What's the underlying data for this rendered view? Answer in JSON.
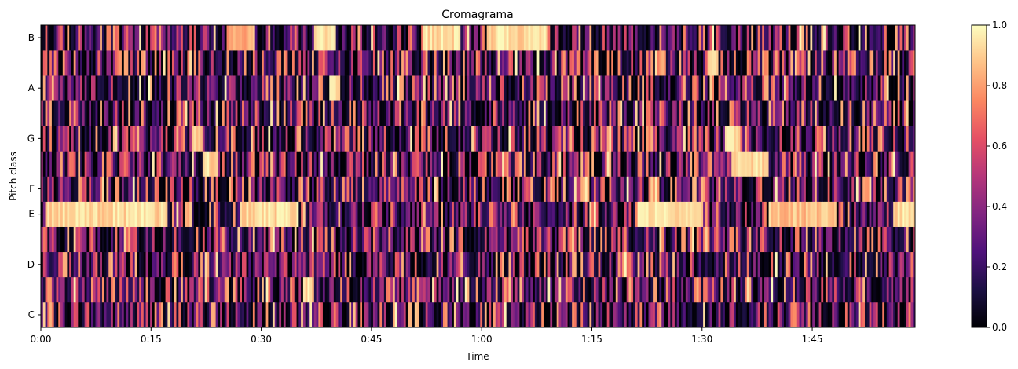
{
  "chart_data": {
    "type": "heatmap",
    "title": "Cromagrama",
    "xlabel": "Time",
    "ylabel": "Pitch class",
    "x_range_seconds": [
      0,
      119
    ],
    "x_ticks": [
      {
        "value": 0,
        "label": "0:00"
      },
      {
        "value": 15,
        "label": "0:15"
      },
      {
        "value": 30,
        "label": "0:30"
      },
      {
        "value": 45,
        "label": "0:45"
      },
      {
        "value": 60,
        "label": "1:00"
      },
      {
        "value": 75,
        "label": "1:15"
      },
      {
        "value": 90,
        "label": "1:30"
      },
      {
        "value": 105,
        "label": "1:45"
      }
    ],
    "pitch_classes": [
      "C",
      "C#",
      "D",
      "D#",
      "E",
      "F",
      "F#",
      "G",
      "G#",
      "A",
      "A#",
      "B"
    ],
    "y_tick_labels": [
      "C",
      "D",
      "E",
      "F",
      "G",
      "A",
      "B"
    ],
    "colormap": "magma",
    "colorbar": {
      "range": [
        0,
        1
      ],
      "ticks": [
        "0.0",
        "0.2",
        "0.4",
        "0.6",
        "0.8",
        "1.0"
      ]
    },
    "value_range": [
      0,
      1
    ],
    "dominant_regions": [
      {
        "pitch": "E",
        "start": 0.5,
        "end": 17,
        "value": 1.0
      },
      {
        "pitch": "E",
        "start": 27,
        "end": 35,
        "value": 1.0
      },
      {
        "pitch": "E",
        "start": 81,
        "end": 90,
        "value": 1.0
      },
      {
        "pitch": "E",
        "start": 99,
        "end": 108,
        "value": 0.95
      },
      {
        "pitch": "E",
        "start": 116,
        "end": 119,
        "value": 1.0
      },
      {
        "pitch": "B",
        "start": 25,
        "end": 29,
        "value": 0.9
      },
      {
        "pitch": "B",
        "start": 37,
        "end": 40,
        "value": 1.0
      },
      {
        "pitch": "B",
        "start": 52,
        "end": 57,
        "value": 1.0
      },
      {
        "pitch": "B",
        "start": 60.5,
        "end": 69,
        "value": 1.0
      },
      {
        "pitch": "F#",
        "start": 22,
        "end": 24,
        "value": 1.0
      },
      {
        "pitch": "F#",
        "start": 94,
        "end": 99,
        "value": 1.0
      },
      {
        "pitch": "G",
        "start": 20.5,
        "end": 22,
        "value": 1.0
      },
      {
        "pitch": "G",
        "start": 93,
        "end": 95,
        "value": 1.0
      },
      {
        "pitch": "A",
        "start": 39,
        "end": 40.5,
        "value": 1.0
      },
      {
        "pitch": "C#",
        "start": 35.5,
        "end": 37,
        "value": 1.0
      },
      {
        "pitch": "A#",
        "start": 90.5,
        "end": 92,
        "value": 1.0
      }
    ]
  }
}
